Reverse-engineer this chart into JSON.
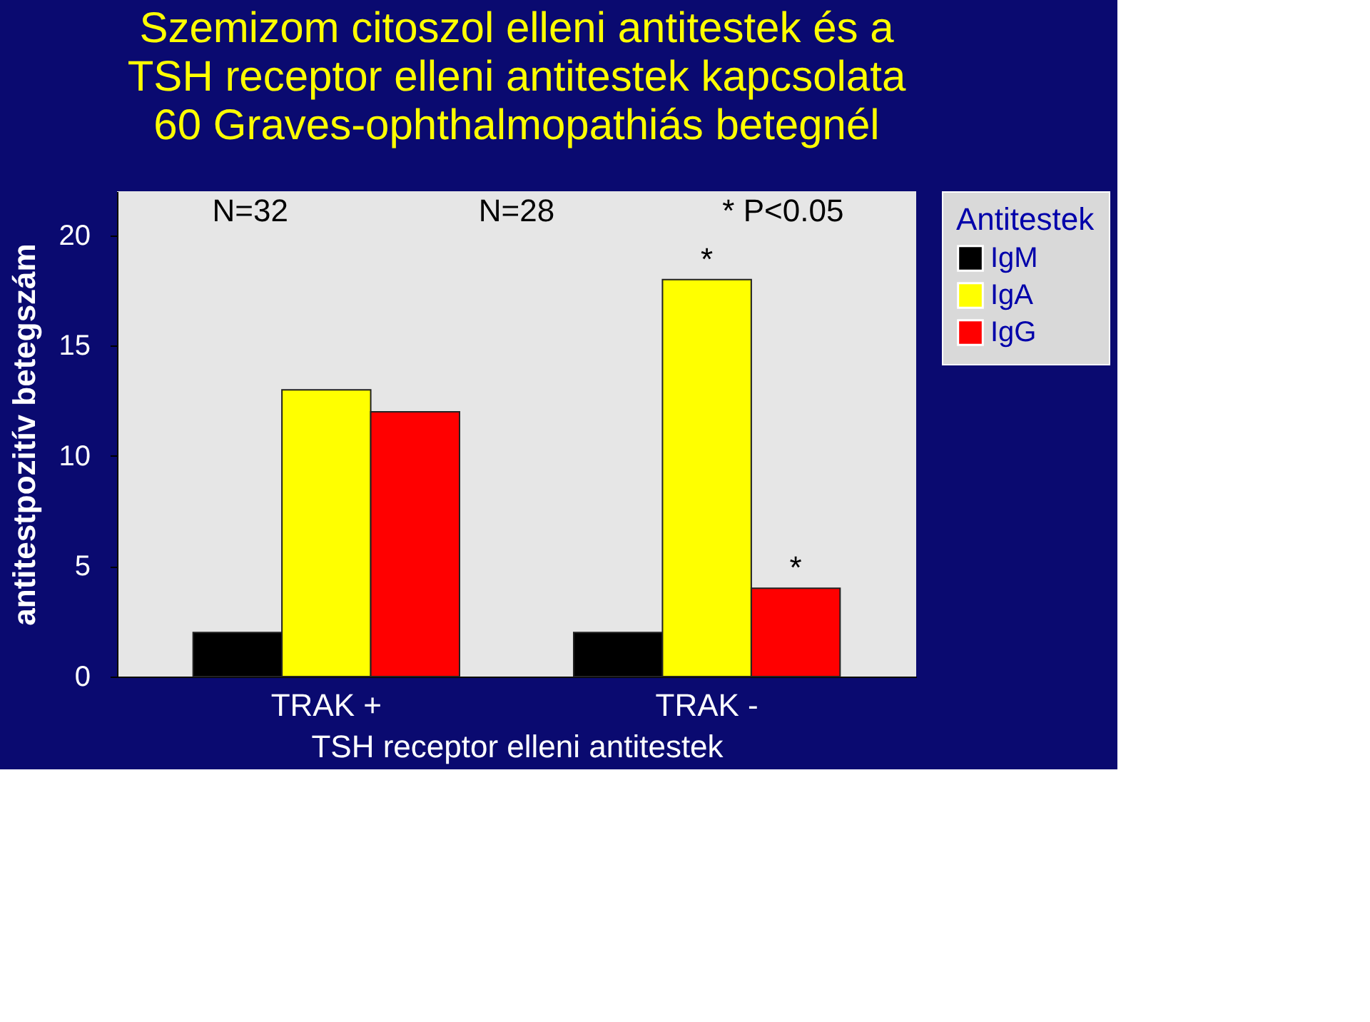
{
  "chart_data": {
    "type": "bar",
    "title": "Szemizom citoszol elleni antitestek és a TSH receptor elleni antitestek kapcsolata 60 Graves-ophthalmopathiás betegnél",
    "xlabel": "TSH receptor elleni antitestek",
    "ylabel": "antitestpozitív betegszám",
    "legend_title": "Antitestek",
    "categories": [
      "TRAK +",
      "TRAK -"
    ],
    "series": [
      {
        "name": "IgM",
        "color": "#000000",
        "values": [
          2,
          2
        ]
      },
      {
        "name": "IgA",
        "color": "#ffff00",
        "values": [
          13,
          18
        ],
        "value_labels": [
          null,
          "*"
        ]
      },
      {
        "name": "IgG",
        "color": "#ff0000",
        "values": [
          12,
          4
        ],
        "value_labels": [
          null,
          "*"
        ]
      }
    ],
    "ylim": [
      0,
      22
    ],
    "yticks": [
      0,
      5,
      10,
      15,
      20
    ],
    "grid": false,
    "legend": "right",
    "annotations": [
      "N=32",
      "N=28",
      "* P<0.05"
    ]
  }
}
